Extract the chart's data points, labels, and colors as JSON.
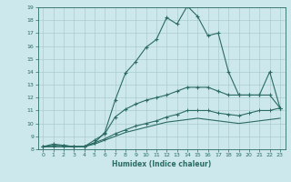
{
  "title": "",
  "xlabel": "Humidex (Indice chaleur)",
  "ylabel": "",
  "background_color": "#cce8ec",
  "line_color": "#2a6b62",
  "grid_color": "#aacccc",
  "xlim": [
    -0.5,
    23.5
  ],
  "ylim": [
    8,
    19
  ],
  "xticks": [
    0,
    1,
    2,
    3,
    4,
    5,
    6,
    7,
    8,
    9,
    10,
    11,
    12,
    13,
    14,
    15,
    16,
    17,
    18,
    19,
    20,
    21,
    22,
    23
  ],
  "yticks": [
    8,
    9,
    10,
    11,
    12,
    13,
    14,
    15,
    16,
    17,
    18,
    19
  ],
  "line1_x": [
    0,
    1,
    2,
    3,
    4,
    5,
    6,
    7,
    8,
    9,
    10,
    11,
    12,
    13,
    14,
    15,
    16,
    17,
    18,
    19,
    20,
    21,
    22,
    23
  ],
  "line1_y": [
    8.2,
    8.4,
    8.3,
    8.2,
    8.2,
    8.5,
    9.3,
    11.8,
    13.9,
    14.8,
    15.9,
    16.5,
    18.2,
    17.7,
    19.1,
    18.3,
    16.8,
    17.0,
    14.0,
    12.2,
    12.2,
    12.2,
    14.0,
    11.2
  ],
  "line2_x": [
    0,
    1,
    2,
    3,
    4,
    5,
    6,
    7,
    8,
    9,
    10,
    11,
    12,
    13,
    14,
    15,
    16,
    17,
    18,
    19,
    20,
    21,
    22,
    23
  ],
  "line2_y": [
    8.2,
    8.3,
    8.3,
    8.2,
    8.2,
    8.7,
    9.2,
    10.5,
    11.1,
    11.5,
    11.8,
    12.0,
    12.2,
    12.5,
    12.8,
    12.8,
    12.8,
    12.5,
    12.2,
    12.2,
    12.2,
    12.2,
    12.2,
    11.2
  ],
  "line3_x": [
    0,
    1,
    2,
    3,
    4,
    5,
    6,
    7,
    8,
    9,
    10,
    11,
    12,
    13,
    14,
    15,
    16,
    17,
    18,
    19,
    20,
    21,
    22,
    23
  ],
  "line3_y": [
    8.2,
    8.2,
    8.2,
    8.2,
    8.2,
    8.5,
    8.8,
    9.2,
    9.5,
    9.8,
    10.0,
    10.2,
    10.5,
    10.7,
    11.0,
    11.0,
    11.0,
    10.8,
    10.7,
    10.6,
    10.8,
    11.0,
    11.0,
    11.2
  ],
  "line4_x": [
    0,
    1,
    2,
    3,
    4,
    5,
    6,
    7,
    8,
    9,
    10,
    11,
    12,
    13,
    14,
    15,
    16,
    17,
    18,
    19,
    20,
    21,
    22,
    23
  ],
  "line4_y": [
    8.2,
    8.2,
    8.2,
    8.2,
    8.2,
    8.4,
    8.7,
    9.0,
    9.3,
    9.5,
    9.7,
    9.9,
    10.1,
    10.2,
    10.3,
    10.4,
    10.3,
    10.2,
    10.1,
    10.0,
    10.1,
    10.2,
    10.3,
    10.4
  ]
}
